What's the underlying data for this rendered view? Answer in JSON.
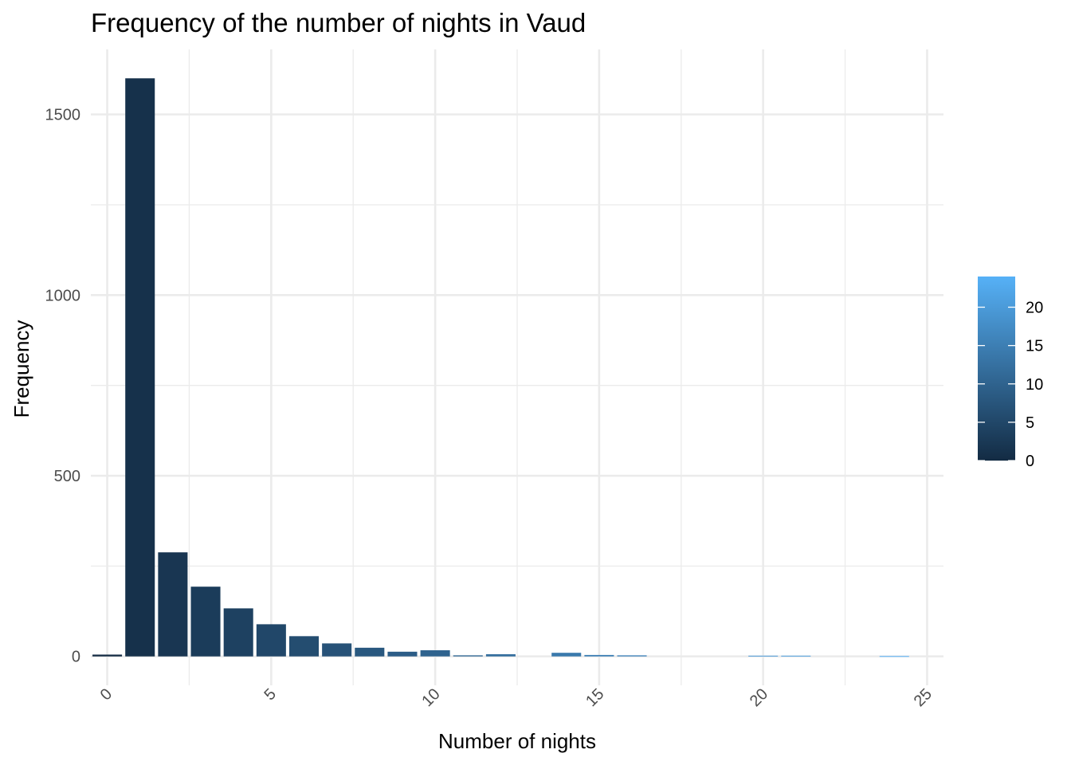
{
  "chart_data": {
    "type": "bar",
    "title": "Frequency of the number of nights in Vaud",
    "xlabel": "Number of nights",
    "ylabel": "Frequency",
    "x": [
      0,
      1,
      2,
      3,
      4,
      5,
      6,
      7,
      8,
      9,
      10,
      11,
      12,
      14,
      15,
      16,
      20,
      21,
      24
    ],
    "values": [
      5,
      1600,
      288,
      193,
      133,
      89,
      56,
      36,
      24,
      13,
      17,
      3,
      6,
      10,
      4,
      3,
      2,
      2,
      1
    ],
    "xlim": [
      -0.5,
      25.5
    ],
    "ylim": [
      -80,
      1680
    ],
    "x_ticks": [
      0,
      5,
      10,
      15,
      20,
      25
    ],
    "x_tick_labels": [
      "0",
      "5",
      "10",
      "15",
      "20",
      "25"
    ],
    "y_ticks": [
      0,
      500,
      1000,
      1500
    ],
    "y_tick_labels": [
      "0",
      "500",
      "1000",
      "1500"
    ],
    "x_tick_angle": "45 degrees",
    "grid": true,
    "legend": {
      "placement": "right",
      "type": "colorbar",
      "range": [
        0,
        24
      ],
      "ticks": [
        0,
        5,
        10,
        15,
        20
      ],
      "tick_labels": [
        "0",
        "5",
        "10",
        "15",
        "20"
      ],
      "color_low": "#132b43",
      "color_high": "#56b1f7"
    }
  }
}
